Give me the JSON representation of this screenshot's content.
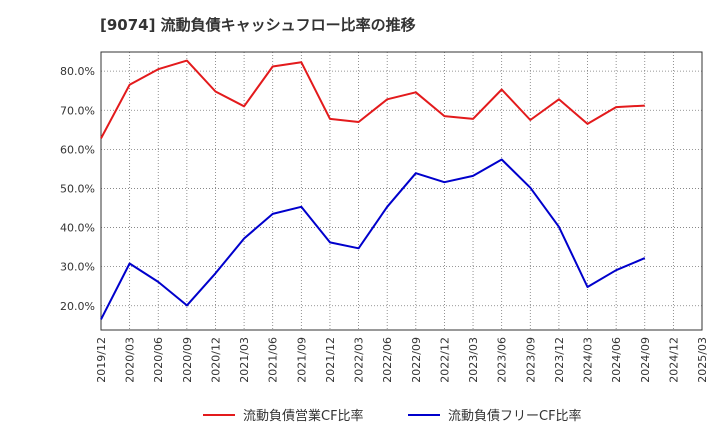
{
  "chart_data": {
    "type": "line",
    "title": "[9074]  流動負債キャッシュフロー比率の推移",
    "x": [
      "2019/12",
      "2020/03",
      "2020/06",
      "2020/09",
      "2020/12",
      "2021/03",
      "2021/06",
      "2021/09",
      "2021/12",
      "2022/03",
      "2022/06",
      "2022/09",
      "2022/12",
      "2023/03",
      "2023/06",
      "2023/09",
      "2023/12",
      "2024/03",
      "2024/06",
      "2024/09",
      "2024/12",
      "2025/03"
    ],
    "series": [
      {
        "name": "流動負債営業CF比率",
        "color": "#e31a1c",
        "values": [
          62.8,
          76.5,
          80.5,
          82.7,
          74.8,
          71.0,
          81.2,
          82.3,
          67.8,
          67.0,
          72.8,
          74.6,
          68.5,
          67.8,
          75.3,
          67.5,
          72.8,
          66.5,
          70.8,
          71.2,
          null,
          null
        ]
      },
      {
        "name": "流動負債フリーCF比率",
        "color": "#0000cc",
        "values": [
          16.5,
          30.8,
          26.1,
          20.1,
          28.3,
          37.2,
          43.5,
          45.3,
          36.2,
          34.7,
          45.3,
          53.9,
          51.6,
          53.2,
          57.4,
          50.2,
          40.2,
          24.8,
          29.1,
          32.2,
          null,
          null
        ]
      }
    ],
    "ylim": [
      13.8,
      84.9
    ],
    "yticks": [
      20,
      30,
      40,
      50,
      60,
      70,
      80
    ],
    "ytick_labels": [
      "20.0%",
      "30.0%",
      "40.0%",
      "50.0%",
      "60.0%",
      "70.0%",
      "80.0%"
    ],
    "grid": true,
    "legend_position": "bottom"
  }
}
